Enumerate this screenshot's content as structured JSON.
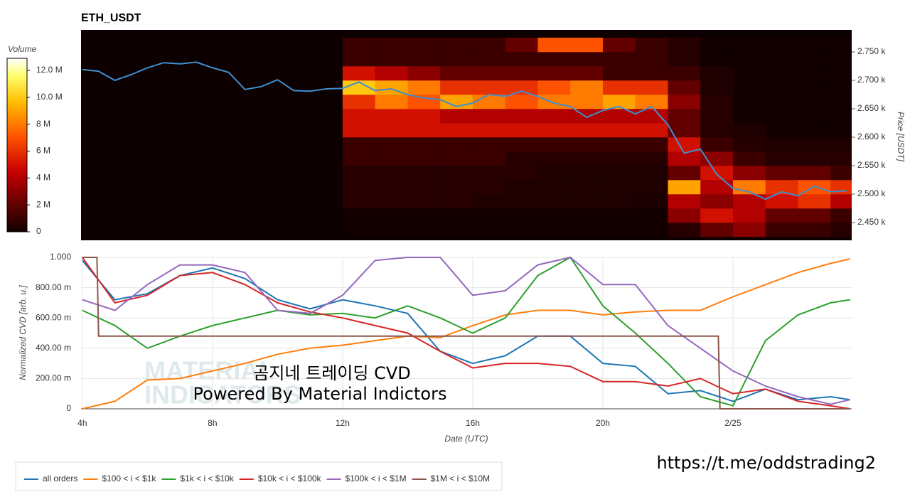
{
  "chart_data": [
    {
      "type": "heatmap",
      "title": "ETH_USDT",
      "y_label": "Price [USDT]",
      "colorbar_label": "Volume",
      "xlim": [
        3.96,
        27.65
      ],
      "ylim": [
        2418.75,
        2788.75
      ],
      "yticks": [
        {
          "value": 2450,
          "label": "2.450 k"
        },
        {
          "value": 2500,
          "label": "2.500 k"
        },
        {
          "value": 2550,
          "label": "2.550 k"
        },
        {
          "value": 2600,
          "label": "2.600 k"
        },
        {
          "value": 2650,
          "label": "2.650 k"
        },
        {
          "value": 2700,
          "label": "2.700 k"
        },
        {
          "value": 2750,
          "label": "2.750 k"
        }
      ],
      "clim": [
        0,
        12.9
      ],
      "cticks": [
        0,
        {
          "value": 2,
          "label": "2 M"
        },
        {
          "value": 4,
          "label": "4 M"
        },
        {
          "value": 6,
          "label": "6 M"
        },
        {
          "value": 8,
          "label": "8 M"
        },
        {
          "value": 10,
          "label": "10.0 M"
        },
        {
          "value": 12,
          "label": "12.0 M"
        }
      ],
      "x_bins": [
        12,
        13,
        14,
        15,
        16,
        17,
        18,
        19,
        20,
        21,
        22,
        23,
        24,
        25,
        26,
        27,
        28
      ],
      "y_bins": [
        2425,
        2450,
        2475,
        2500,
        2525,
        2550,
        2575,
        2600,
        2625,
        2650,
        2675,
        2700,
        2725,
        2750,
        2775
      ],
      "z": [
        [
          0,
          0,
          0,
          0,
          0,
          0,
          0,
          0,
          0,
          0,
          0.5,
          2,
          3,
          1,
          1,
          0.5
        ],
        [
          0,
          0,
          0,
          0,
          0,
          0,
          0,
          0,
          0,
          0,
          3,
          5,
          4,
          2,
          2,
          1
        ],
        [
          0.5,
          0.5,
          0.5,
          0.5,
          0.3,
          0.3,
          0.3,
          0.3,
          0.3,
          0.2,
          4,
          3,
          4,
          5,
          6,
          4
        ],
        [
          0.5,
          0.5,
          0.5,
          0.5,
          0.5,
          0.3,
          0.3,
          0.3,
          0.3,
          0.3,
          9,
          4,
          8,
          6,
          7,
          6
        ],
        [
          0.5,
          0.5,
          0.5,
          0.5,
          0.5,
          0.5,
          0.3,
          0.3,
          0.3,
          0.3,
          2,
          5,
          3,
          2,
          2,
          1
        ],
        [
          1,
          1,
          1,
          1,
          1,
          0.5,
          0.5,
          0.5,
          0.5,
          0.5,
          4,
          3,
          1,
          0.5,
          0.5,
          0.5
        ],
        [
          1,
          1,
          1,
          1,
          1,
          1,
          1,
          1,
          1,
          1,
          5,
          1,
          0.5,
          0.3,
          0.3,
          0.3
        ],
        [
          5,
          5,
          5,
          5,
          5,
          5,
          5,
          5,
          5,
          5,
          2,
          0.5,
          0.3,
          0,
          0,
          0
        ],
        [
          5,
          5,
          5,
          4,
          4,
          4,
          4,
          4,
          4,
          4,
          2,
          0.5,
          0,
          0,
          0,
          0
        ],
        [
          6,
          8,
          7,
          9,
          8,
          7,
          8,
          8,
          9,
          8,
          3,
          0.5,
          0,
          0,
          0,
          0
        ],
        [
          10,
          9,
          8,
          6,
          6,
          6,
          7,
          8,
          6,
          6,
          2,
          0.3,
          0,
          0,
          0,
          0
        ],
        [
          5,
          4,
          3,
          2,
          2,
          2,
          2,
          2,
          1,
          1,
          1,
          0.3,
          0,
          0,
          0,
          0
        ],
        [
          1,
          1,
          1,
          1,
          1,
          1,
          1,
          1,
          1,
          1,
          0.5,
          0,
          0,
          0,
          0,
          0
        ],
        [
          1,
          1,
          1,
          1,
          1,
          2,
          7,
          7,
          2,
          1,
          0.5,
          0,
          0,
          0,
          0,
          0
        ]
      ],
      "line": {
        "color": "#3f8fcf",
        "x": [
          4,
          4.5,
          5,
          5.5,
          6,
          6.5,
          7,
          7.5,
          8,
          8.5,
          9,
          9.5,
          10,
          10.5,
          11,
          11.5,
          12,
          12.5,
          13,
          13.5,
          14,
          14.5,
          15,
          15.5,
          16,
          16.5,
          17,
          17.5,
          18,
          18.5,
          19,
          19.5,
          20,
          20.5,
          21,
          21.5,
          22,
          22.5,
          23,
          23.5,
          24,
          24.5,
          25,
          25.5,
          26,
          26.5,
          27,
          27.5
        ],
        "values": [
          2719,
          2716,
          2700,
          2710,
          2722,
          2731,
          2729,
          2732,
          2722,
          2714,
          2684,
          2689,
          2701,
          2682,
          2681,
          2685,
          2686,
          2697,
          2682,
          2685,
          2675,
          2669,
          2666,
          2654,
          2660,
          2675,
          2672,
          2681,
          2672,
          2660,
          2654,
          2635,
          2647,
          2654,
          2641,
          2654,
          2622,
          2572,
          2579,
          2535,
          2510,
          2504,
          2491,
          2504,
          2497,
          2514,
          2504,
          2506
        ]
      }
    },
    {
      "type": "line",
      "x_label": "Date (UTC)",
      "y_label": "Normalized CVD [arb. u.]",
      "xlim": [
        3.96,
        27.65
      ],
      "ylim": [
        0,
        1
      ],
      "xticks": [
        {
          "value": 4,
          "label": "4h"
        },
        {
          "value": 8,
          "label": "8h"
        },
        {
          "value": 12,
          "label": "12h"
        },
        {
          "value": 16,
          "label": "16h"
        },
        {
          "value": 20,
          "label": "20h"
        },
        {
          "value": 24,
          "label": "2/25"
        }
      ],
      "yticks": [
        0,
        {
          "value": 0.2,
          "label": "200.00 m"
        },
        {
          "value": 0.4,
          "label": "400.00 m"
        },
        {
          "value": 0.6,
          "label": "600.00 m"
        },
        {
          "value": 0.8,
          "label": "800.00 m"
        },
        {
          "value": 1,
          "label": "1.000"
        }
      ],
      "grid": true,
      "x": [
        4,
        5,
        6,
        7,
        8,
        9,
        10,
        11,
        12,
        13,
        14,
        15,
        16,
        17,
        18,
        19,
        20,
        21,
        22,
        23,
        24,
        25,
        26,
        27,
        27.6
      ],
      "series": [
        {
          "name": "all orders",
          "color": "#1f77b4",
          "values": [
            0.98,
            0.72,
            0.76,
            0.88,
            0.93,
            0.86,
            0.72,
            0.66,
            0.72,
            0.68,
            0.63,
            0.38,
            0.3,
            0.35,
            0.48,
            0.48,
            0.3,
            0.28,
            0.1,
            0.12,
            0.05,
            0.13,
            0.06,
            0.08,
            0.06
          ]
        },
        {
          "name": "$100 < i < $1k",
          "color": "#ff7f0e",
          "values": [
            0,
            0.05,
            0.19,
            0.2,
            0.25,
            0.3,
            0.36,
            0.4,
            0.42,
            0.45,
            0.48,
            0.47,
            0.55,
            0.62,
            0.65,
            0.65,
            0.62,
            0.64,
            0.65,
            0.65,
            0.74,
            0.82,
            0.9,
            0.96,
            0.99
          ]
        },
        {
          "name": "$1k < i < $10k",
          "color": "#2ca02c",
          "values": [
            0.65,
            0.55,
            0.4,
            0.48,
            0.55,
            0.6,
            0.65,
            0.62,
            0.63,
            0.6,
            0.68,
            0.6,
            0.5,
            0.6,
            0.88,
            1,
            0.68,
            0.5,
            0.3,
            0.08,
            0.02,
            0.45,
            0.62,
            0.7,
            0.72
          ]
        },
        {
          "name": "$10k < i < $100k",
          "color": "#d62728",
          "values": [
            1,
            0.7,
            0.75,
            0.88,
            0.9,
            0.82,
            0.7,
            0.64,
            0.6,
            0.55,
            0.5,
            0.38,
            0.27,
            0.3,
            0.3,
            0.28,
            0.18,
            0.18,
            0.15,
            0.2,
            0.1,
            0.13,
            0.05,
            0.02,
            0
          ]
        },
        {
          "name": "$100k < i < $1M",
          "color": "#9467bd",
          "values": [
            0.72,
            0.65,
            0.82,
            0.95,
            0.95,
            0.9,
            0.65,
            0.63,
            0.75,
            0.98,
            1,
            1,
            0.75,
            0.78,
            0.95,
            1,
            0.82,
            0.82,
            0.55,
            0.4,
            0.25,
            0.15,
            0.08,
            0.03,
            0.06
          ]
        },
        {
          "name": "$1M < i < $10M",
          "color": "#8c564b",
          "x": [
            4,
            4.45,
            4.5,
            23.55,
            23.6,
            27.6
          ],
          "values": [
            1,
            1,
            0.48,
            0.48,
            0,
            0
          ]
        }
      ],
      "watermark": [
        "MATERIAL",
        "INDICATORS"
      ],
      "annotations": [
        "곰지네 트레이딩 CVD",
        "Powered By Material Indictors",
        "https://t.me/oddstrading2"
      ]
    }
  ]
}
